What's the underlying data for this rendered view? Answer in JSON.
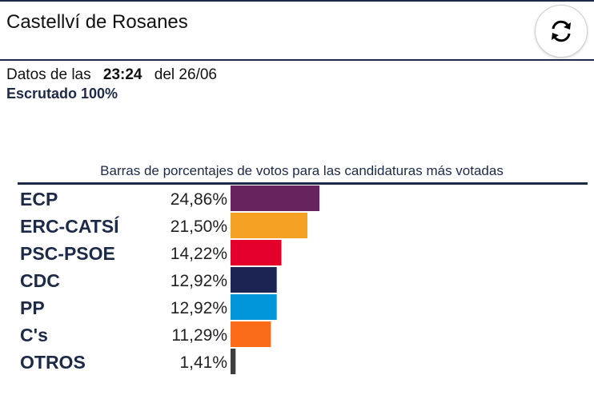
{
  "header": {
    "title": "Castellví de Rosanes",
    "refresh_icon": "refresh-icon"
  },
  "info": {
    "prefix": "Datos de las",
    "time": "23:24",
    "date_text": "del 26/06",
    "status": "Escrutado 100%"
  },
  "chart_data": {
    "type": "bar",
    "title": "Barras de porcentajes de votos para las candidaturas más votadas",
    "orientation": "horizontal",
    "categories": [
      "ECP",
      "ERC-CATSÍ",
      "PSC-PSOE",
      "CDC",
      "PP",
      "C's",
      "OTROS"
    ],
    "values": [
      24.86,
      21.5,
      14.22,
      12.92,
      12.92,
      11.29,
      1.41
    ],
    "labels": [
      "24,86%",
      "21,50%",
      "14,22%",
      "12,92%",
      "12,92%",
      "11,29%",
      "1,41%"
    ],
    "colors": [
      "#66235e",
      "#f5a124",
      "#e4002b",
      "#1c2454",
      "#0096d9",
      "#fb6b1a",
      "#3f3f3f"
    ],
    "xlim": [
      0,
      100
    ]
  }
}
